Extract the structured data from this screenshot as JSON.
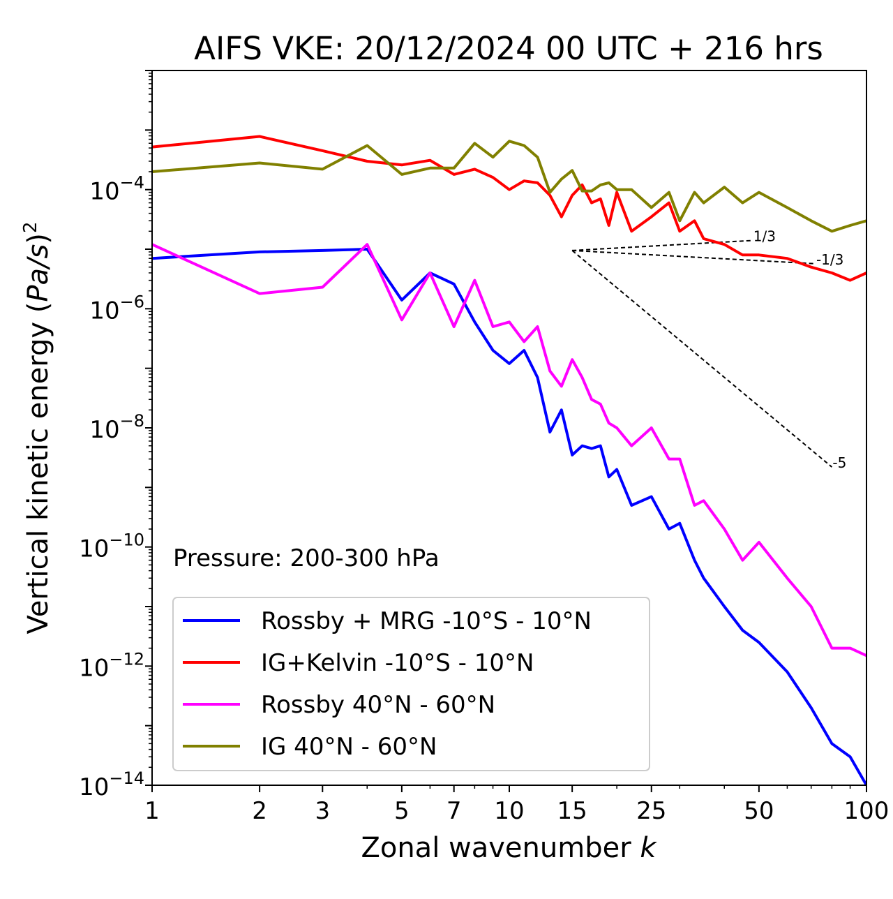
{
  "chart_data": {
    "type": "line",
    "title": "AIFS VKE: 20/12/2024 00 UTC + 216 hrs",
    "xlabel": "Zonal wavenumber k",
    "xlabel_main": "Zonal wavenumber ",
    "xlabel_var": "k",
    "ylabel": "Vertical kinetic energy (Pa/s)²",
    "ylabel_main": "Vertical kinetic energy (",
    "ylabel_var": "Pa/s",
    "ylabel_close": ")",
    "ylabel_exp": "2",
    "annotation": "Pressure: 200-300 hPa",
    "xscale": "log",
    "yscale": "log",
    "xlim": [
      1,
      100
    ],
    "ylim": [
      1e-14,
      0.01
    ],
    "grid": false,
    "legend_position": "lower-left",
    "x_ticks": [
      {
        "value": 1,
        "label": "1"
      },
      {
        "value": 2,
        "label": "2"
      },
      {
        "value": 3,
        "label": "3"
      },
      {
        "value": 5,
        "label": "5"
      },
      {
        "value": 7,
        "label": "7"
      },
      {
        "value": 10,
        "label": "10"
      },
      {
        "value": 15,
        "label": "15"
      },
      {
        "value": 25,
        "label": "25"
      },
      {
        "value": 50,
        "label": "50"
      },
      {
        "value": 100,
        "label": "100"
      }
    ],
    "y_ticks": [
      {
        "value": 0.0001,
        "base": "10",
        "exp": "−4"
      },
      {
        "value": 1e-06,
        "base": "10",
        "exp": "−6"
      },
      {
        "value": 1e-08,
        "base": "10",
        "exp": "−8"
      },
      {
        "value": 1e-10,
        "base": "10",
        "exp": "−10"
      },
      {
        "value": 1e-12,
        "base": "10",
        "exp": "−12"
      },
      {
        "value": 1e-14,
        "base": "10",
        "exp": "−14"
      }
    ],
    "reference_slopes": [
      {
        "label": "1/3",
        "x": [
          15,
          48
        ],
        "y": [
          9.5e-06,
          1.4e-05
        ]
      },
      {
        "label": "-1/3",
        "x": [
          15,
          72
        ],
        "y": [
          9.5e-06,
          5.7e-06
        ]
      },
      {
        "label": "-5",
        "x": [
          15,
          80
        ],
        "y": [
          9.5e-06,
          2.2e-09
        ]
      }
    ],
    "series": [
      {
        "name": "Rossby + MRG -10°S - 10°N",
        "color": "#0000ff",
        "x": [
          1,
          2,
          3,
          4,
          5,
          6,
          7,
          8,
          9,
          10,
          11,
          12,
          13,
          14,
          15,
          16,
          17,
          18,
          19,
          20,
          22,
          25,
          28,
          30,
          33,
          35,
          40,
          45,
          50,
          60,
          70,
          80,
          90,
          100
        ],
        "y": [
          7e-06,
          9e-06,
          9.5e-06,
          1e-05,
          1.4e-06,
          4e-06,
          2.6e-06,
          6e-07,
          2e-07,
          1.2e-07,
          2e-07,
          7e-08,
          8.5e-09,
          2e-08,
          3.5e-09,
          5e-09,
          4.5e-09,
          5e-09,
          1.5e-09,
          2e-09,
          5e-10,
          7e-10,
          2e-10,
          2.5e-10,
          6e-11,
          3e-11,
          1e-11,
          4e-12,
          2.5e-12,
          8e-13,
          2e-13,
          5e-14,
          3e-14,
          1e-14
        ]
      },
      {
        "name": "IG+Kelvin -10°S - 10°N",
        "color": "#ff0000",
        "x": [
          1,
          2,
          3,
          4,
          5,
          6,
          7,
          8,
          9,
          10,
          11,
          12,
          13,
          14,
          15,
          16,
          17,
          18,
          19,
          20,
          22,
          25,
          28,
          30,
          33,
          35,
          40,
          45,
          50,
          60,
          70,
          80,
          90,
          100
        ],
        "y": [
          0.00052,
          0.00078,
          0.00045,
          0.0003,
          0.00026,
          0.00031,
          0.00018,
          0.00022,
          0.00016,
          0.0001,
          0.00014,
          0.00013,
          8e-05,
          3.5e-05,
          8e-05,
          0.00012,
          6e-05,
          7e-05,
          2.5e-05,
          9e-05,
          2e-05,
          3.5e-05,
          6e-05,
          2e-05,
          3e-05,
          1.5e-05,
          1.2e-05,
          8e-06,
          8e-06,
          7e-06,
          5e-06,
          4e-06,
          3e-06,
          4e-06
        ]
      },
      {
        "name": "Rossby 40°N - 60°N",
        "color": "#ff00ff",
        "x": [
          1,
          2,
          3,
          4,
          5,
          6,
          7,
          8,
          9,
          10,
          11,
          12,
          13,
          14,
          15,
          16,
          17,
          18,
          19,
          20,
          22,
          25,
          28,
          30,
          33,
          35,
          40,
          45,
          50,
          60,
          70,
          80,
          90,
          100
        ],
        "y": [
          1.2e-05,
          1.8e-06,
          2.3e-06,
          1.2e-05,
          6.5e-07,
          4e-06,
          5e-07,
          3e-06,
          5e-07,
          6e-07,
          2.8e-07,
          5e-07,
          9e-08,
          5e-08,
          1.4e-07,
          7e-08,
          3e-08,
          2.5e-08,
          1.2e-08,
          1e-08,
          5e-09,
          1e-08,
          3e-09,
          3e-09,
          5e-10,
          6e-10,
          2e-10,
          6e-11,
          1.2e-10,
          3e-11,
          1e-11,
          2e-12,
          2e-12,
          1.5e-12
        ]
      },
      {
        "name": "IG 40°N - 60°N",
        "color": "#808000",
        "x": [
          1,
          2,
          3,
          4,
          5,
          6,
          7,
          8,
          9,
          10,
          11,
          12,
          13,
          14,
          15,
          16,
          17,
          18,
          19,
          20,
          22,
          25,
          28,
          30,
          33,
          35,
          40,
          45,
          50,
          60,
          70,
          80,
          90,
          100
        ],
        "y": [
          0.0002,
          0.00028,
          0.00022,
          0.00055,
          0.00018,
          0.00023,
          0.00023,
          0.0006,
          0.00035,
          0.00065,
          0.00055,
          0.00035,
          9e-05,
          0.00015,
          0.00021,
          9.5e-05,
          9.5e-05,
          0.00012,
          0.00013,
          0.0001,
          0.0001,
          5e-05,
          9e-05,
          3e-05,
          9e-05,
          6e-05,
          0.00011,
          6e-05,
          9e-05,
          5e-05,
          3e-05,
          2e-05,
          2.5e-05,
          3e-05
        ]
      }
    ]
  }
}
